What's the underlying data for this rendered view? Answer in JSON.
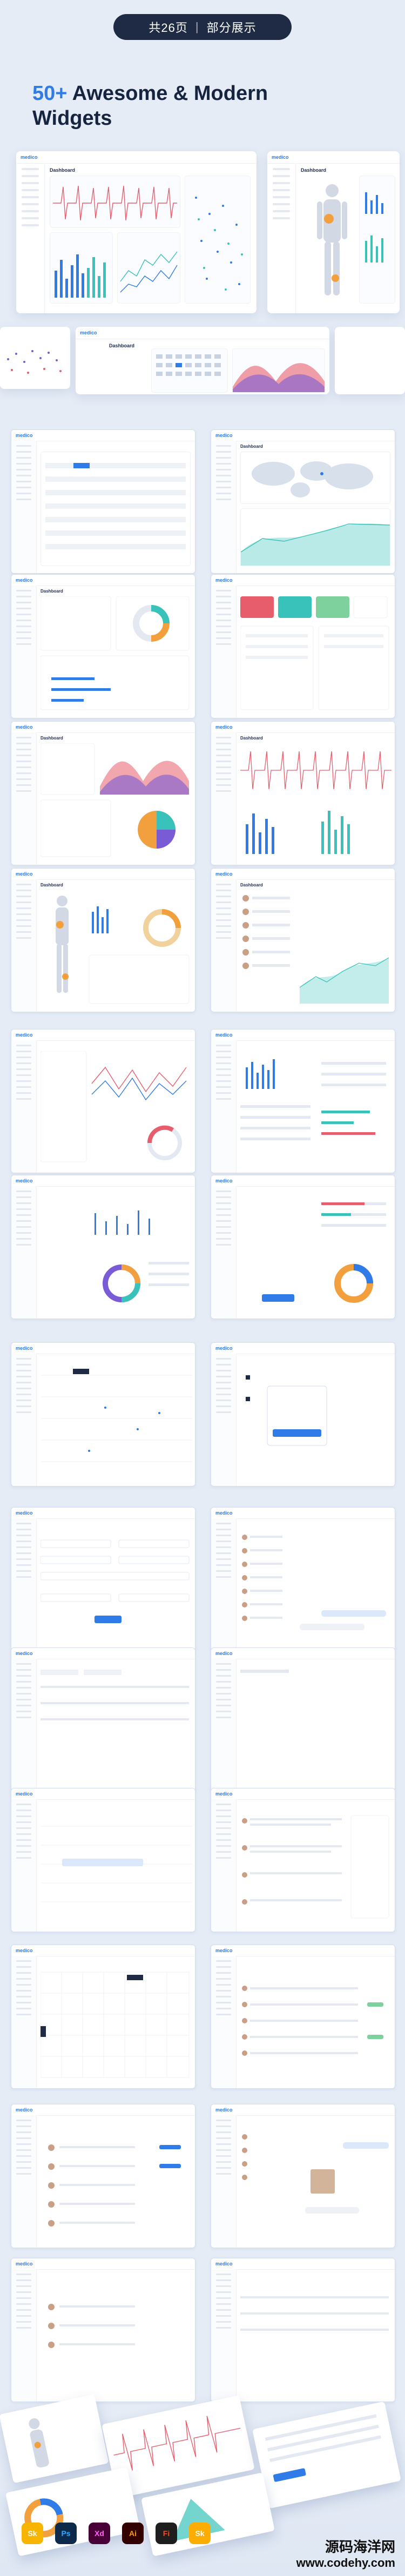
{
  "badge": {
    "left": "共26页",
    "right": "部分展示"
  },
  "headline": {
    "highlight": "50+",
    "line1_rest": " Awesome & Modern",
    "line2": "Widgets"
  },
  "panel_labels": {
    "logo": "medico",
    "dashboard": "Dashboard"
  },
  "tools": [
    "Sk",
    "Ps",
    "Xd",
    "Ai",
    "Fi",
    "Sk"
  ],
  "watermark": {
    "line1": "源码海洋网",
    "line2": "www.codehy.com"
  },
  "colors": {
    "accent": "#2f7be8",
    "red": "#e85d6c",
    "orange": "#f2a03d",
    "teal": "#39c2b9",
    "purple": "#7a5bd6"
  }
}
